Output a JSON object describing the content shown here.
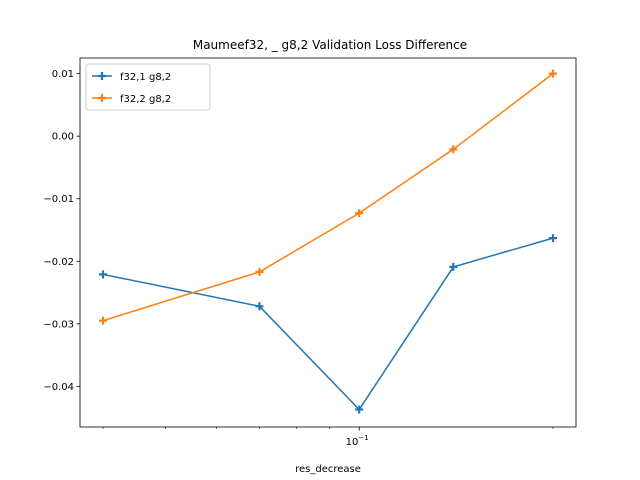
{
  "chart_data": {
    "type": "line",
    "title": "Maumeef32, _ g8,2 Validation Loss Difference",
    "xlabel": "res_decrease",
    "ylabel": "",
    "xscale": "log",
    "x": [
      0.04,
      0.07,
      0.1,
      0.14,
      0.2
    ],
    "xtick_label": {
      "base": "10",
      "exp": "−1"
    },
    "ylim": [
      -0.0465,
      0.0125
    ],
    "yticks": [
      0.01,
      0.0,
      -0.01,
      -0.02,
      -0.03,
      -0.04
    ],
    "ytick_labels": [
      "0.01",
      "0.00",
      "−0.01",
      "−0.02",
      "−0.03",
      "−0.04"
    ],
    "grid": false,
    "legend_position": "top-left",
    "marker": "plus",
    "series": [
      {
        "name": "f32,1 g8,2",
        "color": "#1f77b4",
        "values": [
          -0.0221,
          -0.0272,
          -0.0437,
          -0.0209,
          -0.0163
        ]
      },
      {
        "name": "f32,2 g8,2",
        "color": "#ff7f0e",
        "values": [
          -0.0295,
          -0.0217,
          -0.0123,
          -0.0021,
          0.01
        ]
      }
    ]
  }
}
